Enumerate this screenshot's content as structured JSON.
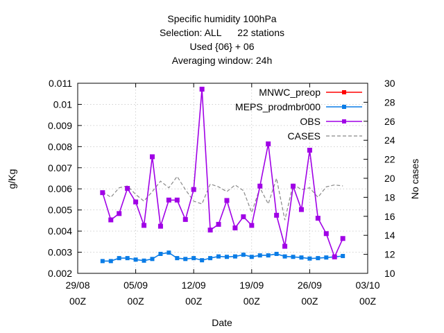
{
  "chart_data": {
    "type": "line",
    "title_lines": [
      "Specific humidity 100hPa",
      "Selection: ALL      22 stations",
      "Used {06} + 06",
      "Averaging window: 24h"
    ],
    "xlabel": "Date",
    "ylabel": "g/Kg",
    "y2label": "No cases",
    "xlim": [
      "2023-08-29T00:00",
      "2023-10-03T00:00"
    ],
    "ylim": [
      0.002,
      0.011
    ],
    "y2lim": [
      10,
      30
    ],
    "x_ticks": [
      {
        "date": "2023-08-29T00:00",
        "line1": "29/08",
        "line2": "00Z"
      },
      {
        "date": "2023-09-05T00:00",
        "line1": "05/09",
        "line2": "00Z"
      },
      {
        "date": "2023-09-12T00:00",
        "line1": "12/09",
        "line2": "00Z"
      },
      {
        "date": "2023-09-19T00:00",
        "line1": "19/09",
        "line2": "00Z"
      },
      {
        "date": "2023-09-26T00:00",
        "line1": "26/09",
        "line2": "00Z"
      },
      {
        "date": "2023-10-03T00:00",
        "line1": "03/10",
        "line2": "00Z"
      }
    ],
    "y_ticks": [
      "0.002",
      "0.003",
      "0.004",
      "0.005",
      "0.006",
      "0.007",
      "0.008",
      "0.009",
      "0.01",
      "0.011"
    ],
    "y2_ticks": [
      "10",
      "12",
      "14",
      "16",
      "18",
      "20",
      "22",
      "24",
      "26",
      "28",
      "30"
    ],
    "grid": true,
    "legend_position": "top-right",
    "x_dates": [
      "2023-09-01T00:00",
      "2023-09-02T00:00",
      "2023-09-03T00:00",
      "2023-09-04T00:00",
      "2023-09-05T00:00",
      "2023-09-06T00:00",
      "2023-09-07T00:00",
      "2023-09-08T00:00",
      "2023-09-09T00:00",
      "2023-09-10T00:00",
      "2023-09-11T00:00",
      "2023-09-12T00:00",
      "2023-09-13T00:00",
      "2023-09-14T00:00",
      "2023-09-15T00:00",
      "2023-09-16T00:00",
      "2023-09-17T00:00",
      "2023-09-18T00:00",
      "2023-09-19T00:00",
      "2023-09-20T00:00",
      "2023-09-21T00:00",
      "2023-09-22T00:00",
      "2023-09-23T00:00",
      "2023-09-24T00:00",
      "2023-09-25T00:00",
      "2023-09-26T00:00",
      "2023-09-27T00:00",
      "2023-09-28T00:00",
      "2023-09-29T00:00",
      "2023-09-30T00:00"
    ],
    "series": [
      {
        "name": "MNWC_preop",
        "axis": "y1",
        "style": "line+points",
        "color": "#ff0000",
        "values": [
          null,
          null,
          null,
          null,
          null,
          null,
          null,
          null,
          null,
          null,
          null,
          null,
          null,
          null,
          null,
          null,
          null,
          null,
          null,
          null,
          null,
          null,
          null,
          null,
          null,
          null,
          null,
          null,
          null,
          null
        ]
      },
      {
        "name": "MEPS_prodmbr000",
        "axis": "y1",
        "style": "line+points",
        "color": "#0a7ce6",
        "values": [
          0.00258,
          0.00258,
          0.00272,
          0.00272,
          0.00265,
          0.0026,
          0.00268,
          0.00292,
          0.00298,
          0.00272,
          0.00268,
          0.00272,
          0.00262,
          0.00272,
          0.0028,
          0.00278,
          0.0028,
          0.00288,
          0.00278,
          0.00285,
          0.00285,
          0.00292,
          0.0028,
          0.00278,
          0.00275,
          0.0027,
          0.00272,
          0.00275,
          0.00278,
          0.00282
        ]
      },
      {
        "name": "OBS",
        "axis": "y1",
        "style": "line+points",
        "color": "#a000e6",
        "values": [
          0.00582,
          0.00453,
          0.00483,
          0.00602,
          0.00538,
          0.00427,
          0.00752,
          0.00423,
          0.00547,
          0.00547,
          0.00455,
          0.00597,
          0.01072,
          0.00405,
          0.00432,
          0.00545,
          0.00415,
          0.00468,
          0.00427,
          0.00613,
          0.00813,
          0.00475,
          0.00328,
          0.00613,
          0.00502,
          0.00783,
          0.00461,
          0.00388,
          0.00278,
          0.00365
        ]
      },
      {
        "name": "CASES",
        "axis": "y2",
        "style": "dashed",
        "color": "#888888",
        "x_start": "2023-09-01T00:00",
        "x_end": "2023-09-30T00:00",
        "values": [
          18.6,
          18.0,
          19.0,
          19.2,
          18.3,
          17.6,
          18.6,
          19.7,
          19.0,
          20.2,
          18.8,
          17.6,
          17.3,
          19.4,
          19.1,
          18.6,
          19.3,
          18.7,
          16.4,
          19.0,
          17.3,
          20.0,
          15.6,
          19.4,
          18.8,
          19.0,
          18.0,
          19.1,
          19.3,
          19.2
        ]
      }
    ]
  }
}
